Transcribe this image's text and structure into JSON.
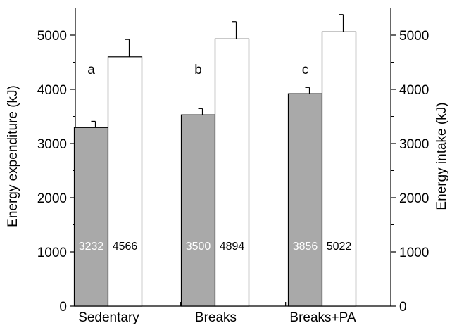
{
  "chart_data": {
    "type": "bar",
    "categories": [
      "Sedentary",
      "Breaks",
      "Breaks+PA"
    ],
    "series": [
      {
        "key": "expenditure",
        "values": [
          3232,
          3500,
          3856
        ],
        "bar_heights": [
          3295,
          3530,
          3920
        ],
        "errors": [
          115,
          115,
          115
        ],
        "value_labels": [
          "3232",
          "3500",
          "3856"
        ],
        "color": "#a9a9a9",
        "label_color": "#ffffff"
      },
      {
        "key": "intake",
        "values": [
          4566,
          4894,
          5022
        ],
        "bar_heights": [
          4600,
          4930,
          5060
        ],
        "errors": [
          320,
          320,
          320
        ],
        "value_labels": [
          "4566",
          "4894",
          "5022"
        ],
        "color": "#ffffff",
        "label_color": "#000000"
      }
    ],
    "significance_letters": [
      "a",
      "b",
      "c"
    ],
    "ylabel": "Energy expenditure (kJ)",
    "ylabel_right": "Energy intake (kJ)",
    "ylim": [
      0,
      5500
    ],
    "yticks": [
      0,
      1000,
      2000,
      3000,
      4000,
      5000
    ],
    "grid": false,
    "legend": "none"
  }
}
